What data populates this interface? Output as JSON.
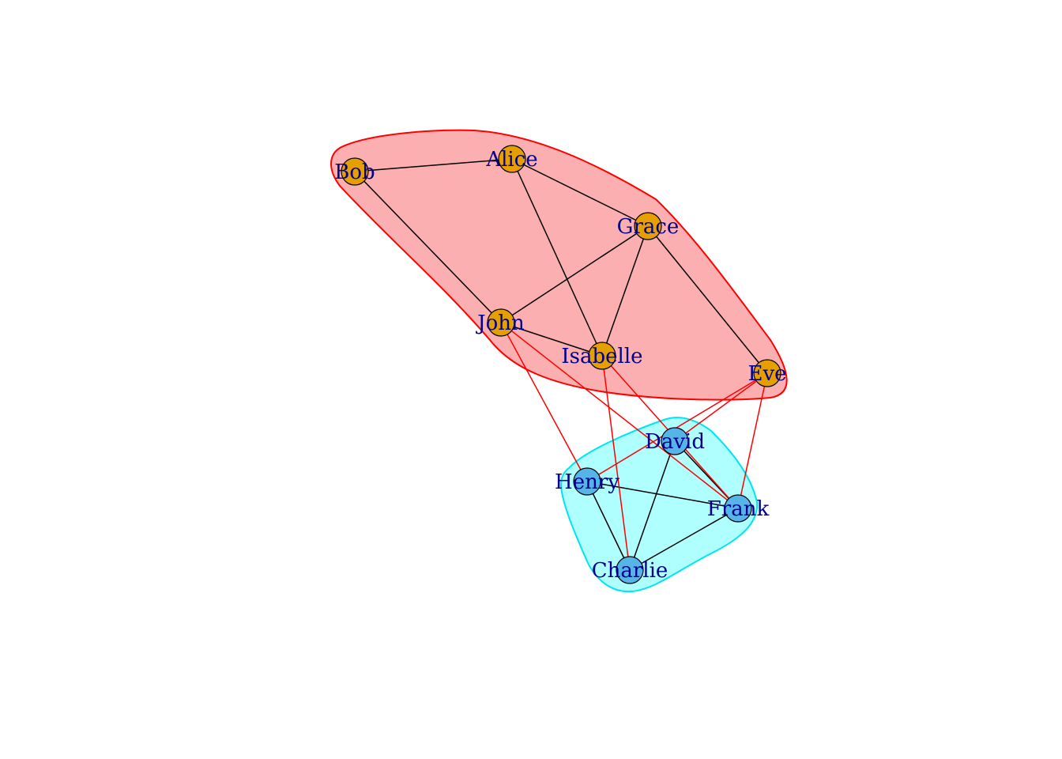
{
  "diagram": {
    "nodes": [
      {
        "id": "Bob",
        "label": "Bob",
        "group": "orange"
      },
      {
        "id": "Alice",
        "label": "Alice",
        "group": "orange"
      },
      {
        "id": "Grace",
        "label": "Grace",
        "group": "orange"
      },
      {
        "id": "John",
        "label": "John",
        "group": "orange"
      },
      {
        "id": "Isabelle",
        "label": "Isabelle",
        "group": "orange"
      },
      {
        "id": "Eve",
        "label": "Eve",
        "group": "orange"
      },
      {
        "id": "David",
        "label": "David",
        "group": "blue"
      },
      {
        "id": "Henry",
        "label": "Henry",
        "group": "blue"
      },
      {
        "id": "Frank",
        "label": "Frank",
        "group": "blue"
      },
      {
        "id": "Charlie",
        "label": "Charlie",
        "group": "blue"
      }
    ],
    "edges": [
      {
        "from": "Bob",
        "to": "Alice",
        "type": "within"
      },
      {
        "from": "Bob",
        "to": "John",
        "type": "within"
      },
      {
        "from": "Alice",
        "to": "Grace",
        "type": "within"
      },
      {
        "from": "Alice",
        "to": "Isabelle",
        "type": "within"
      },
      {
        "from": "Grace",
        "to": "John",
        "type": "within"
      },
      {
        "from": "Grace",
        "to": "Isabelle",
        "type": "within"
      },
      {
        "from": "Grace",
        "to": "Eve",
        "type": "within"
      },
      {
        "from": "John",
        "to": "Isabelle",
        "type": "within"
      },
      {
        "from": "David",
        "to": "Frank",
        "type": "within"
      },
      {
        "from": "David",
        "to": "Charlie",
        "type": "within"
      },
      {
        "from": "Henry",
        "to": "Frank",
        "type": "within"
      },
      {
        "from": "Henry",
        "to": "Charlie",
        "type": "within"
      },
      {
        "from": "Frank",
        "to": "Charlie",
        "type": "within"
      },
      {
        "from": "John",
        "to": "Henry",
        "type": "between"
      },
      {
        "from": "John",
        "to": "Frank",
        "type": "between"
      },
      {
        "from": "Isabelle",
        "to": "Charlie",
        "type": "between"
      },
      {
        "from": "Isabelle",
        "to": "Frank",
        "type": "between"
      },
      {
        "from": "Eve",
        "to": "David",
        "type": "between"
      },
      {
        "from": "Eve",
        "to": "Henry",
        "type": "between"
      },
      {
        "from": "Eve",
        "to": "Frank",
        "type": "between"
      }
    ],
    "groups": [
      {
        "id": "orange",
        "node_color": "#e69f00",
        "hull_fill": "#fcafb0",
        "hull_stroke": "#ff0000"
      },
      {
        "id": "blue",
        "node_color": "#56b4e9",
        "hull_fill": "#b0ffff",
        "hull_stroke": "#00e5ee"
      }
    ],
    "colors": {
      "within_edge": "#000000",
      "between_edge": "#ff0000",
      "label": "#00008b",
      "node_border": "#000000"
    }
  }
}
